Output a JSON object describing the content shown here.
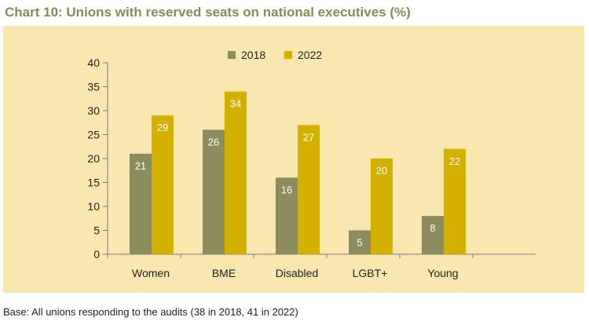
{
  "header": {
    "title": "Chart 10: Unions with reserved seats on national executives (%)"
  },
  "footer": {
    "base_note": "Base: All unions responding to the audits (38 in 2018, 41 in 2022)"
  },
  "chart_data": {
    "type": "bar",
    "categories": [
      "Women",
      "BME",
      "Disabled",
      "LGBT+",
      "Young"
    ],
    "series": [
      {
        "name": "2018",
        "values": [
          21,
          26,
          16,
          5,
          8
        ],
        "color": "#8c8c5e"
      },
      {
        "name": "2022",
        "values": [
          29,
          34,
          27,
          20,
          22
        ],
        "color": "#d4b000"
      }
    ],
    "ylim": [
      0,
      40
    ],
    "yticks": [
      0,
      5,
      10,
      15,
      20,
      25,
      30,
      35,
      40
    ],
    "grid": false,
    "legend": "top-center",
    "background": "#f8e8b0",
    "label_color": "#ffffff"
  }
}
